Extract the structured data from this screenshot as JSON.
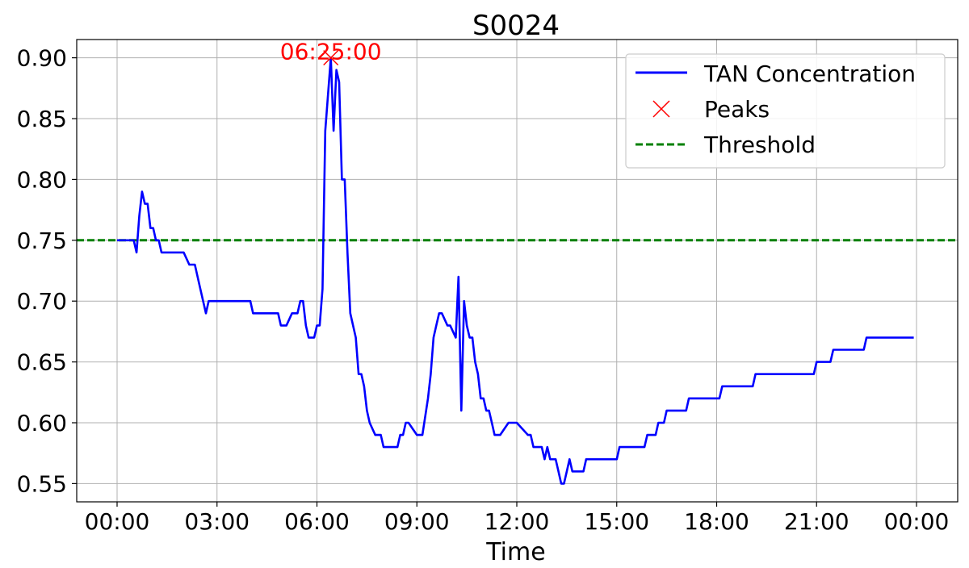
{
  "chart_data": {
    "type": "line",
    "title": "S0024",
    "xlabel": "Time",
    "ylabel": "",
    "xlim": [
      "00:00",
      "24:00"
    ],
    "ylim": [
      0.535,
      0.915
    ],
    "x_ticks": [
      "00:00",
      "03:00",
      "06:00",
      "09:00",
      "12:00",
      "15:00",
      "18:00",
      "21:00",
      "00:00"
    ],
    "y_ticks": [
      "0.55",
      "0.60",
      "0.65",
      "0.70",
      "0.75",
      "0.80",
      "0.85",
      "0.90"
    ],
    "grid": true,
    "legend_position": "top-right",
    "colors": {
      "line": "#0000ff",
      "peak": "#ff0000",
      "threshold": "#008000",
      "grid": "#b0b0b0"
    },
    "series": [
      {
        "name": "TAN Concentration",
        "x": [
          "00:00",
          "00:10",
          "00:20",
          "00:30",
          "00:35",
          "00:40",
          "00:45",
          "00:50",
          "00:55",
          "01:00",
          "01:05",
          "01:10",
          "01:15",
          "01:20",
          "01:25",
          "01:30",
          "01:40",
          "02:00",
          "02:10",
          "02:20",
          "02:30",
          "02:40",
          "02:45",
          "02:50",
          "03:00",
          "03:30",
          "04:00",
          "04:05",
          "04:30",
          "04:50",
          "04:55",
          "05:05",
          "05:15",
          "05:25",
          "05:30",
          "05:35",
          "05:40",
          "05:45",
          "05:55",
          "06:00",
          "06:05",
          "06:10",
          "06:15",
          "06:25",
          "06:30",
          "06:35",
          "06:40",
          "06:45",
          "06:50",
          "06:55",
          "07:00",
          "07:10",
          "07:15",
          "07:20",
          "07:25",
          "07:30",
          "07:35",
          "07:45",
          "07:55",
          "08:00",
          "08:10",
          "08:20",
          "08:25",
          "08:30",
          "08:35",
          "08:40",
          "08:45",
          "09:00",
          "09:10",
          "09:20",
          "09:25",
          "09:30",
          "09:35",
          "09:40",
          "09:45",
          "09:55",
          "10:00",
          "10:10",
          "10:15",
          "10:20",
          "10:25",
          "10:30",
          "10:35",
          "10:40",
          "10:45",
          "10:50",
          "10:55",
          "11:00",
          "11:05",
          "11:10",
          "11:15",
          "11:20",
          "11:25",
          "11:30",
          "11:45",
          "11:50",
          "12:00",
          "12:20",
          "12:25",
          "12:30",
          "12:35",
          "12:45",
          "12:50",
          "12:55",
          "13:00",
          "13:05",
          "13:10",
          "13:15",
          "13:20",
          "13:25",
          "13:30",
          "13:35",
          "13:40",
          "14:00",
          "14:05",
          "15:00",
          "15:05",
          "15:15",
          "15:20",
          "15:50",
          "15:55",
          "16:10",
          "16:15",
          "16:25",
          "16:30",
          "17:05",
          "17:10",
          "18:05",
          "18:10",
          "19:05",
          "19:10",
          "20:55",
          "21:00",
          "21:25",
          "21:30",
          "22:25",
          "22:30",
          "23:55"
        ],
        "y": [
          0.75,
          0.75,
          0.75,
          0.75,
          0.74,
          0.77,
          0.79,
          0.78,
          0.78,
          0.76,
          0.76,
          0.75,
          0.75,
          0.74,
          0.74,
          0.74,
          0.74,
          0.74,
          0.73,
          0.73,
          0.71,
          0.69,
          0.7,
          0.7,
          0.7,
          0.7,
          0.7,
          0.69,
          0.69,
          0.69,
          0.68,
          0.68,
          0.69,
          0.69,
          0.7,
          0.7,
          0.68,
          0.67,
          0.67,
          0.68,
          0.68,
          0.71,
          0.84,
          0.9,
          0.84,
          0.89,
          0.88,
          0.8,
          0.8,
          0.74,
          0.69,
          0.67,
          0.64,
          0.64,
          0.63,
          0.61,
          0.6,
          0.59,
          0.59,
          0.58,
          0.58,
          0.58,
          0.58,
          0.59,
          0.59,
          0.6,
          0.6,
          0.59,
          0.59,
          0.62,
          0.64,
          0.67,
          0.68,
          0.69,
          0.69,
          0.68,
          0.68,
          0.67,
          0.72,
          0.61,
          0.7,
          0.68,
          0.67,
          0.67,
          0.65,
          0.64,
          0.62,
          0.62,
          0.61,
          0.61,
          0.6,
          0.59,
          0.59,
          0.59,
          0.6,
          0.6,
          0.6,
          0.59,
          0.59,
          0.58,
          0.58,
          0.58,
          0.57,
          0.58,
          0.57,
          0.57,
          0.57,
          0.56,
          0.55,
          0.55,
          0.56,
          0.57,
          0.56,
          0.56,
          0.57,
          0.57,
          0.58,
          0.58,
          0.58,
          0.58,
          0.59,
          0.59,
          0.6,
          0.6,
          0.61,
          0.61,
          0.62,
          0.62,
          0.63,
          0.63,
          0.64,
          0.64,
          0.65,
          0.65,
          0.66,
          0.66,
          0.67,
          0.67
        ]
      },
      {
        "name": "Peaks",
        "x": [
          "06:25"
        ],
        "y": [
          0.9
        ]
      },
      {
        "name": "Threshold",
        "y": 0.75
      }
    ],
    "annotations": [
      {
        "text": "06:25:00",
        "x": "06:25",
        "y": 0.9
      }
    ]
  }
}
